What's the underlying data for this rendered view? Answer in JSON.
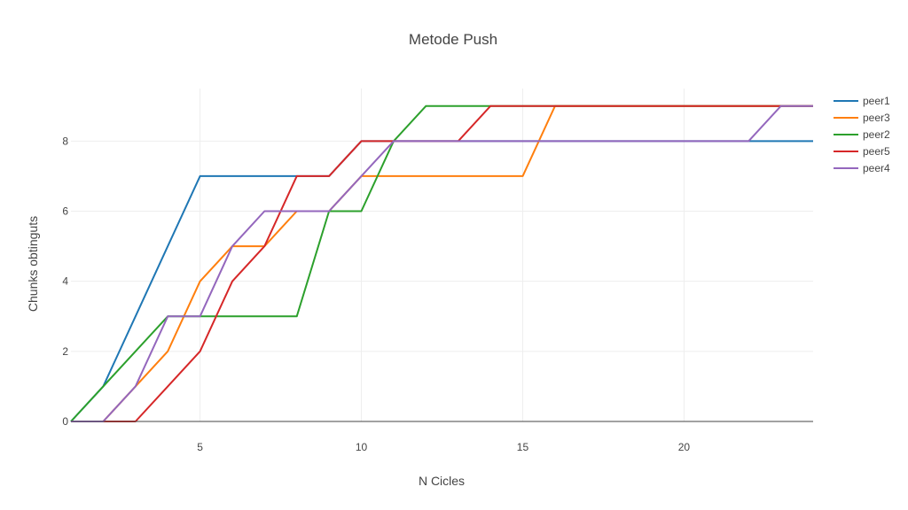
{
  "chart_data": {
    "type": "line",
    "title": "Metode Push",
    "xlabel": "N Cicles",
    "ylabel": "Chunks obtinguts",
    "xlim": [
      1,
      24
    ],
    "ylim": [
      0,
      9.5
    ],
    "xticks": [
      5,
      10,
      15,
      20
    ],
    "yticks": [
      0,
      2,
      4,
      6,
      8
    ],
    "grid": true,
    "legend_position": "top-right",
    "x": [
      1,
      2,
      3,
      4,
      5,
      6,
      7,
      8,
      9,
      10,
      11,
      12,
      13,
      14,
      15,
      16,
      17,
      18,
      19,
      20,
      21,
      22,
      23,
      24
    ],
    "series": [
      {
        "name": "peer1",
        "color": "#1f77b4",
        "values": [
          0,
          1,
          3,
          5,
          7,
          7,
          7,
          7,
          7,
          8,
          8,
          8,
          8,
          8,
          8,
          8,
          8,
          8,
          8,
          8,
          8,
          8,
          8,
          8
        ]
      },
      {
        "name": "peer3",
        "color": "#ff7f0e",
        "values": [
          0,
          0,
          1,
          2,
          4,
          5,
          5,
          6,
          6,
          7,
          7,
          7,
          7,
          7,
          7,
          9,
          9,
          9,
          9,
          9,
          9,
          9,
          9,
          9
        ]
      },
      {
        "name": "peer2",
        "color": "#2ca02c",
        "values": [
          0,
          1,
          2,
          3,
          3,
          3,
          3,
          3,
          6,
          6,
          8,
          9,
          9,
          9,
          9,
          9,
          9,
          9,
          9,
          9,
          9,
          9,
          9,
          9
        ]
      },
      {
        "name": "peer5",
        "color": "#d62728",
        "values": [
          0,
          0,
          0,
          1,
          2,
          4,
          5,
          7,
          7,
          8,
          8,
          8,
          8,
          9,
          9,
          9,
          9,
          9,
          9,
          9,
          9,
          9,
          9,
          9
        ]
      },
      {
        "name": "peer4",
        "color": "#9467bd",
        "values": [
          0,
          0,
          1,
          3,
          3,
          5,
          6,
          6,
          6,
          7,
          8,
          8,
          8,
          8,
          8,
          8,
          8,
          8,
          8,
          8,
          8,
          8,
          9,
          9
        ]
      }
    ]
  }
}
